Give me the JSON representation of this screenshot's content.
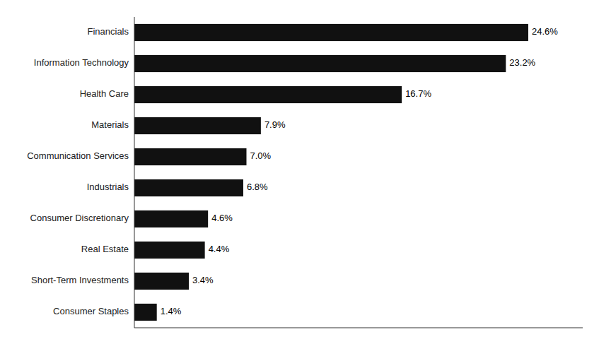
{
  "chart_data": {
    "type": "bar",
    "orientation": "horizontal",
    "categories": [
      "Consumer Staples",
      "Short-Term Investments",
      "Real Estate",
      "Consumer Discretionary",
      "Industrials",
      "Communication Services",
      "Materials",
      "Health Care",
      "Information Technology",
      "Financials"
    ],
    "values": [
      1.4,
      3.4,
      4.4,
      4.6,
      6.8,
      7.0,
      7.9,
      16.7,
      23.2,
      24.6
    ],
    "value_labels": [
      "1.4%",
      "3.4%",
      "4.4%",
      "4.6%",
      "6.8%",
      "7.0%",
      "7.9%",
      "16.7%",
      "23.2%",
      "24.6%"
    ],
    "color": "#111111",
    "xlim": [
      0,
      28
    ],
    "data_labels": true,
    "tick_labels": "y",
    "grid": false
  }
}
